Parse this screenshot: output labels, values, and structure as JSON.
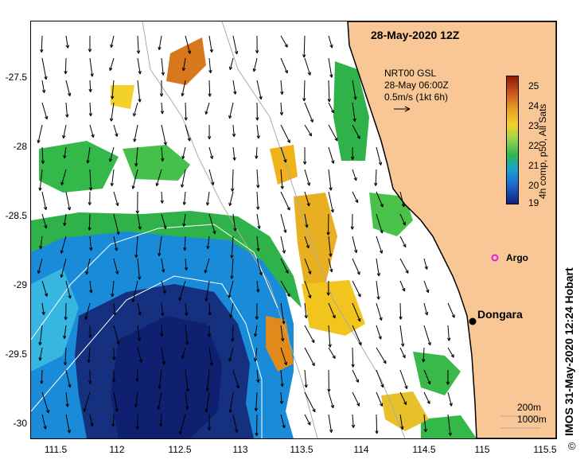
{
  "title": "28-May-2020 12Z",
  "legend": {
    "product": "NRT00 GSL",
    "time": "28-May 06:00Z",
    "vector_scale": "0.5m/s (1kt 6h)"
  },
  "colorbar": {
    "label": "4h comp, p50, All Sats",
    "ticks": [
      "25",
      "24",
      "23",
      "22",
      "21",
      "20",
      "19"
    ],
    "colors": [
      "#8b1a00",
      "#e89a20",
      "#f2d22a",
      "#2fb84a",
      "#1f6fd6",
      "#15207a"
    ]
  },
  "lat_ticks": [
    "-27.5",
    "-28",
    "-28.5",
    "-29",
    "-29.5",
    "-30"
  ],
  "lon_ticks": [
    "111.5",
    "112",
    "112.5",
    "113",
    "113.5",
    "114",
    "114.5",
    "115",
    "115.5"
  ],
  "places": {
    "argo": "Argo",
    "dongara": "Dongara"
  },
  "isobaths": [
    "200m",
    "1000m"
  ],
  "credit": "IMOS 31-May-2020 12:24 Hobart",
  "copyright": "©",
  "colors": {
    "land": "#f9c795",
    "coast": "#000000",
    "warm": "#f0b21a",
    "green": "#34b84a",
    "cool": "#1f6fd6",
    "deep": "#14207a",
    "argo": "#e020e0"
  }
}
